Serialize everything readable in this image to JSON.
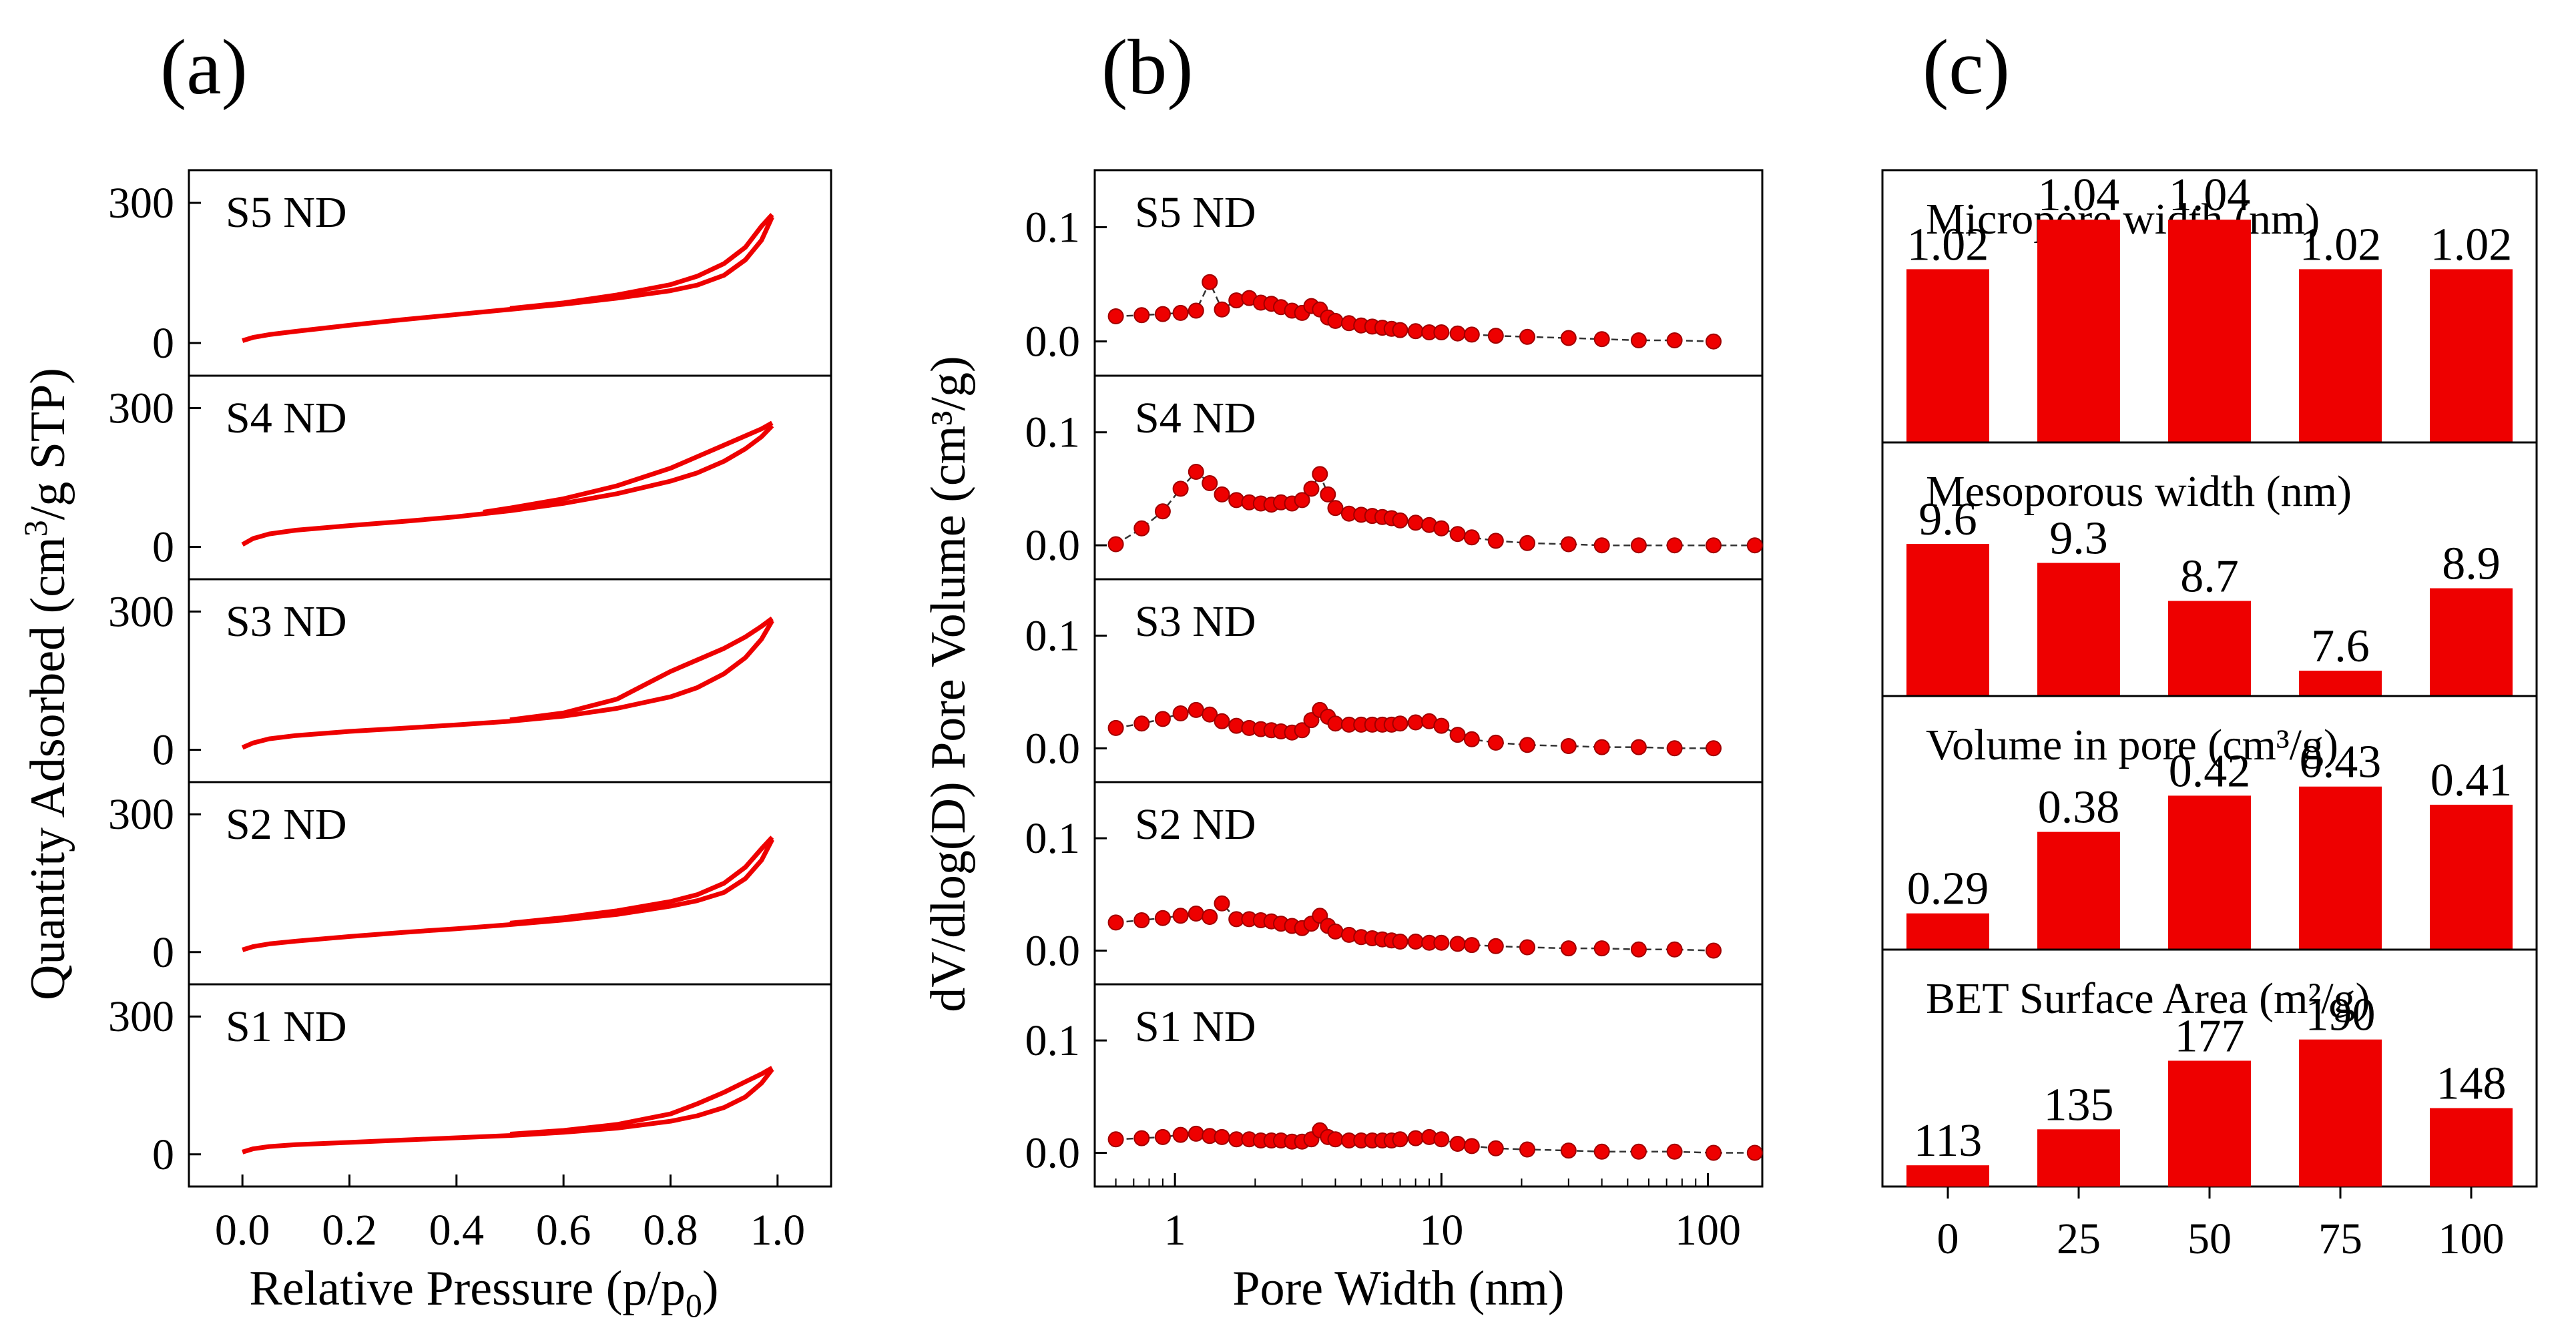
{
  "panel_labels": [
    "(a)",
    "(b)",
    "(c)"
  ],
  "colors": {
    "series": "#ee0000",
    "axis": "#000000",
    "connector": "#333333"
  },
  "chart_data": [
    {
      "type": "line",
      "panel": "(a)",
      "xlabel": "Relative Pressure (p/p",
      "xlabel_sub": "0",
      "xlabel_close": ")",
      "ylabel": "Quantity Adsorbed (cm",
      "ylabel_sup": "3",
      "ylabel_tail": "/g STP)",
      "xlim": [
        -0.1,
        1.1
      ],
      "ylim": [
        -70,
        370
      ],
      "xticks": [
        0.0,
        0.2,
        0.4,
        0.6,
        0.8,
        1.0
      ],
      "xtick_labels": [
        "0.0",
        "0.2",
        "0.4",
        "0.6",
        "0.8",
        "1.0"
      ],
      "yticks": [
        0,
        300
      ],
      "ytick_labels": [
        "0",
        "300"
      ],
      "series": [
        {
          "name": "S5 ND",
          "adsorption": [
            [
              0.0,
              5
            ],
            [
              0.02,
              12
            ],
            [
              0.05,
              18
            ],
            [
              0.1,
              25
            ],
            [
              0.2,
              38
            ],
            [
              0.3,
              50
            ],
            [
              0.4,
              61
            ],
            [
              0.5,
              72
            ],
            [
              0.6,
              83
            ],
            [
              0.7,
              96
            ],
            [
              0.8,
              112
            ],
            [
              0.85,
              124
            ],
            [
              0.9,
              145
            ],
            [
              0.94,
              178
            ],
            [
              0.97,
              220
            ],
            [
              0.99,
              270
            ]
          ],
          "desorption": [
            [
              0.99,
              275
            ],
            [
              0.97,
              250
            ],
            [
              0.94,
              205
            ],
            [
              0.9,
              170
            ],
            [
              0.85,
              143
            ],
            [
              0.8,
              125
            ],
            [
              0.7,
              103
            ],
            [
              0.6,
              86
            ],
            [
              0.5,
              74
            ]
          ]
        },
        {
          "name": "S4 ND",
          "adsorption": [
            [
              0.0,
              5
            ],
            [
              0.02,
              18
            ],
            [
              0.05,
              28
            ],
            [
              0.1,
              36
            ],
            [
              0.2,
              46
            ],
            [
              0.3,
              55
            ],
            [
              0.4,
              65
            ],
            [
              0.5,
              78
            ],
            [
              0.6,
              94
            ],
            [
              0.7,
              115
            ],
            [
              0.8,
              142
            ],
            [
              0.85,
              160
            ],
            [
              0.9,
              185
            ],
            [
              0.94,
              212
            ],
            [
              0.97,
              238
            ],
            [
              0.99,
              262
            ]
          ],
          "desorption": [
            [
              0.99,
              268
            ],
            [
              0.97,
              255
            ],
            [
              0.94,
              240
            ],
            [
              0.9,
              220
            ],
            [
              0.85,
              195
            ],
            [
              0.8,
              170
            ],
            [
              0.7,
              132
            ],
            [
              0.6,
              104
            ],
            [
              0.5,
              84
            ],
            [
              0.45,
              75
            ]
          ]
        },
        {
          "name": "S3 ND",
          "adsorption": [
            [
              0.0,
              5
            ],
            [
              0.02,
              15
            ],
            [
              0.05,
              24
            ],
            [
              0.1,
              31
            ],
            [
              0.2,
              40
            ],
            [
              0.3,
              47
            ],
            [
              0.4,
              54
            ],
            [
              0.5,
              62
            ],
            [
              0.6,
              73
            ],
            [
              0.7,
              90
            ],
            [
              0.8,
              115
            ],
            [
              0.85,
              135
            ],
            [
              0.9,
              165
            ],
            [
              0.94,
              200
            ],
            [
              0.97,
              240
            ],
            [
              0.99,
              280
            ]
          ],
          "desorption": [
            [
              0.99,
              285
            ],
            [
              0.97,
              268
            ],
            [
              0.94,
              245
            ],
            [
              0.9,
              220
            ],
            [
              0.85,
              195
            ],
            [
              0.8,
              170
            ],
            [
              0.75,
              140
            ],
            [
              0.7,
              110
            ],
            [
              0.6,
              80
            ],
            [
              0.5,
              65
            ]
          ]
        },
        {
          "name": "S2 ND",
          "adsorption": [
            [
              0.0,
              5
            ],
            [
              0.02,
              12
            ],
            [
              0.05,
              18
            ],
            [
              0.1,
              24
            ],
            [
              0.2,
              34
            ],
            [
              0.3,
              43
            ],
            [
              0.4,
              51
            ],
            [
              0.5,
              60
            ],
            [
              0.6,
              70
            ],
            [
              0.7,
              82
            ],
            [
              0.8,
              100
            ],
            [
              0.85,
              112
            ],
            [
              0.9,
              130
            ],
            [
              0.94,
              160
            ],
            [
              0.97,
              200
            ],
            [
              0.99,
              245
            ]
          ],
          "desorption": [
            [
              0.99,
              250
            ],
            [
              0.97,
              225
            ],
            [
              0.94,
              185
            ],
            [
              0.9,
              150
            ],
            [
              0.85,
              125
            ],
            [
              0.8,
              110
            ],
            [
              0.7,
              90
            ],
            [
              0.6,
              75
            ],
            [
              0.5,
              63
            ]
          ]
        },
        {
          "name": "S1 ND",
          "adsorption": [
            [
              0.0,
              5
            ],
            [
              0.02,
              12
            ],
            [
              0.05,
              17
            ],
            [
              0.1,
              21
            ],
            [
              0.2,
              26
            ],
            [
              0.3,
              31
            ],
            [
              0.4,
              36
            ],
            [
              0.5,
              41
            ],
            [
              0.6,
              48
            ],
            [
              0.7,
              57
            ],
            [
              0.8,
              72
            ],
            [
              0.85,
              84
            ],
            [
              0.9,
              102
            ],
            [
              0.94,
              125
            ],
            [
              0.97,
              155
            ],
            [
              0.99,
              185
            ]
          ],
          "desorption": [
            [
              0.99,
              188
            ],
            [
              0.97,
              175
            ],
            [
              0.94,
              158
            ],
            [
              0.9,
              135
            ],
            [
              0.85,
              110
            ],
            [
              0.8,
              88
            ],
            [
              0.7,
              65
            ],
            [
              0.6,
              52
            ],
            [
              0.5,
              44
            ]
          ]
        }
      ]
    },
    {
      "type": "scatter",
      "panel": "(b)",
      "xscale": "log",
      "xlabel": "Pore Width (nm)",
      "ylabel": "dV/dlog(D) Pore Volume (cm³/g)",
      "xlim": [
        0.5,
        160
      ],
      "ylim": [
        -0.03,
        0.15
      ],
      "xticks": [
        1,
        10,
        100
      ],
      "xtick_labels": [
        "1",
        "10",
        "100"
      ],
      "yticks": [
        0.0,
        0.1
      ],
      "ytick_labels": [
        "0.0",
        "0.1"
      ],
      "x": [
        0.6,
        0.75,
        0.9,
        1.05,
        1.2,
        1.35,
        1.5,
        1.7,
        1.9,
        2.1,
        2.3,
        2.5,
        2.75,
        3.0,
        3.25,
        3.5,
        3.75,
        4.0,
        4.5,
        5.0,
        5.5,
        6.0,
        6.5,
        7.0,
        8.0,
        9.0,
        10.0,
        11.5,
        13.0,
        16.0,
        21.0,
        30.0,
        40.0,
        55.0,
        75.0,
        105.0,
        150.0
      ],
      "series": [
        {
          "name": "S5 ND",
          "y": [
            0.022,
            0.023,
            0.024,
            0.025,
            0.027,
            0.052,
            0.028,
            0.036,
            0.038,
            0.034,
            0.033,
            0.03,
            0.027,
            0.025,
            0.031,
            0.028,
            0.021,
            0.018,
            0.016,
            0.014,
            0.013,
            0.012,
            0.011,
            0.01,
            0.009,
            0.008,
            0.008,
            0.007,
            0.006,
            0.005,
            0.004,
            0.003,
            0.002,
            0.001,
            0.001,
            0.0,
            null
          ]
        },
        {
          "name": "S4 ND",
          "y": [
            0.001,
            0.015,
            0.03,
            0.05,
            0.065,
            0.055,
            0.045,
            0.04,
            0.038,
            0.037,
            0.036,
            0.038,
            0.037,
            0.04,
            0.05,
            0.063,
            0.045,
            0.033,
            0.028,
            0.027,
            0.026,
            0.025,
            0.024,
            0.022,
            0.02,
            0.018,
            0.015,
            0.01,
            0.007,
            0.004,
            0.002,
            0.001,
            0.0,
            0.0,
            0.0,
            0.0,
            0.0
          ]
        },
        {
          "name": "S3 ND",
          "y": [
            0.018,
            0.022,
            0.026,
            0.031,
            0.034,
            0.03,
            0.024,
            0.02,
            0.018,
            0.017,
            0.016,
            0.015,
            0.014,
            0.016,
            0.025,
            0.034,
            0.028,
            0.022,
            0.021,
            0.021,
            0.021,
            0.021,
            0.021,
            0.022,
            0.023,
            0.024,
            0.02,
            0.012,
            0.008,
            0.005,
            0.003,
            0.002,
            0.001,
            0.001,
            0.0,
            0.0,
            null
          ]
        },
        {
          "name": "S2 ND",
          "y": [
            0.025,
            0.027,
            0.029,
            0.031,
            0.033,
            0.03,
            0.042,
            0.028,
            0.028,
            0.027,
            0.026,
            0.024,
            0.022,
            0.02,
            0.024,
            0.031,
            0.022,
            0.017,
            0.014,
            0.012,
            0.011,
            0.01,
            0.009,
            0.008,
            0.008,
            0.007,
            0.007,
            0.006,
            0.005,
            0.004,
            0.003,
            0.002,
            0.002,
            0.001,
            0.001,
            0.0,
            null
          ]
        },
        {
          "name": "S1 ND",
          "y": [
            0.012,
            0.013,
            0.014,
            0.016,
            0.017,
            0.015,
            0.014,
            0.012,
            0.012,
            0.011,
            0.011,
            0.011,
            0.01,
            0.01,
            0.012,
            0.02,
            0.014,
            0.012,
            0.011,
            0.011,
            0.011,
            0.011,
            0.011,
            0.012,
            0.013,
            0.014,
            0.012,
            0.008,
            0.006,
            0.004,
            0.003,
            0.002,
            0.001,
            0.001,
            0.001,
            0.0,
            0.0
          ]
        }
      ]
    },
    {
      "type": "bar",
      "panel": "(c)",
      "categories": [
        "0",
        "25",
        "50",
        "75",
        "100"
      ],
      "series": [
        {
          "name": "Micropore width (nm)",
          "values": [
            1.02,
            1.04,
            1.04,
            1.02,
            1.02
          ],
          "labels": [
            "1.02",
            "1.04",
            "1.04",
            "1.02",
            "1.02"
          ],
          "ylim": [
            0.95,
            1.06
          ]
        },
        {
          "name": "Mesoporous width (nm)",
          "values": [
            9.6,
            9.3,
            8.7,
            7.6,
            8.9
          ],
          "labels": [
            "9.6",
            "9.3",
            "8.7",
            "7.6",
            "8.9"
          ],
          "ylim": [
            7.2,
            11.2
          ]
        },
        {
          "name": "Volume in pore (cm³/g)",
          "values": [
            0.29,
            0.38,
            0.42,
            0.43,
            0.41
          ],
          "labels": [
            "0.29",
            "0.38",
            "0.42",
            "0.43",
            "0.41"
          ],
          "ylim": [
            0.25,
            0.53
          ]
        },
        {
          "name": "BET Surface Area (m²/g)",
          "values": [
            113,
            135,
            177,
            190,
            148
          ],
          "labels": [
            "113",
            "135",
            "177",
            "190",
            "148"
          ],
          "ylim": [
            100,
            245
          ]
        }
      ]
    }
  ]
}
